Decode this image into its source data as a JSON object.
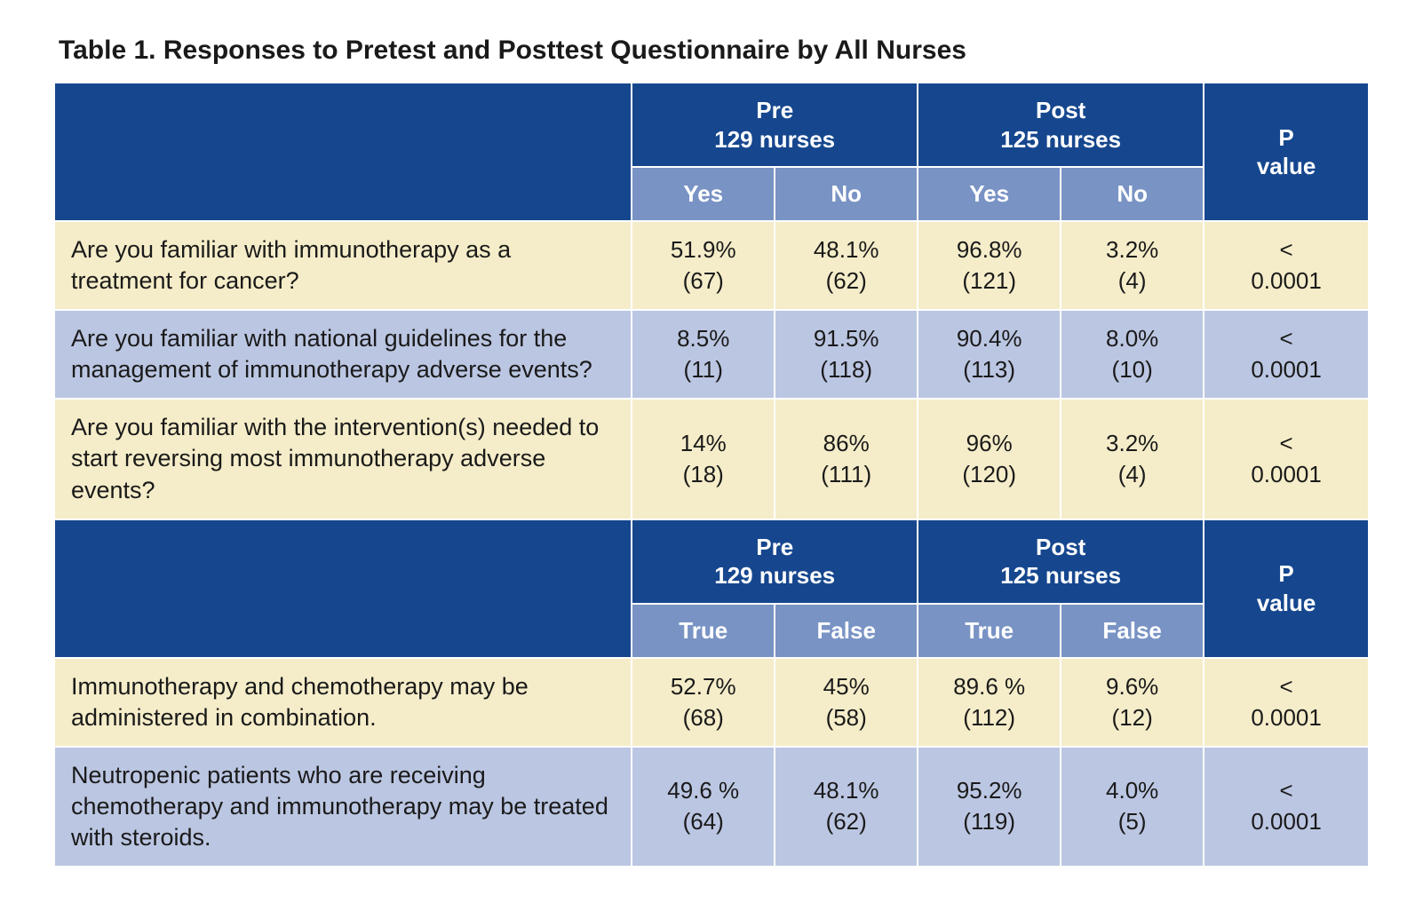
{
  "title": "Table 1. Responses to Pretest and Posttest Questionnaire by All Nurses",
  "colors": {
    "header_dark": "#16478e",
    "header_mid": "#7993c4",
    "row_yellow": "#f5edc9",
    "row_blue": "#bbc6e2",
    "text": "#1a1a1a",
    "header_text": "#ffffff",
    "border": "#ffffff"
  },
  "fonts": {
    "title_size_pt": 22,
    "header_size_pt": 19,
    "body_size_pt": 20
  },
  "section1": {
    "pre_label_line1": "Pre",
    "pre_label_line2": "129 nurses",
    "post_label_line1": "Post",
    "post_label_line2": "125 nurses",
    "p_label_line1": "P",
    "p_label_line2": "value",
    "sub_labels": {
      "pre_yes": "Yes",
      "pre_no": "No",
      "post_yes": "Yes",
      "post_no": "No"
    },
    "rows": [
      {
        "question": "Are you familiar with immunotherapy as a treatment for cancer?",
        "pre_yes_pct": "51.9%",
        "pre_yes_n": "(67)",
        "pre_no_pct": "48.1%",
        "pre_no_n": "(62)",
        "post_yes_pct": "96.8%",
        "post_yes_n": "(121)",
        "post_no_pct": "3.2%",
        "post_no_n": "(4)",
        "p_line1": "<",
        "p_line2": "0.0001",
        "stripe": "yellow"
      },
      {
        "question": "Are you familiar with national guidelines for the management of immunotherapy adverse events?",
        "pre_yes_pct": "8.5%",
        "pre_yes_n": "(11)",
        "pre_no_pct": "91.5%",
        "pre_no_n": "(118)",
        "post_yes_pct": "90.4%",
        "post_yes_n": "(113)",
        "post_no_pct": "8.0%",
        "post_no_n": "(10)",
        "p_line1": "<",
        "p_line2": "0.0001",
        "stripe": "blue"
      },
      {
        "question": "Are you familiar with the intervention(s) needed to start reversing most immunotherapy adverse events?",
        "pre_yes_pct": "14%",
        "pre_yes_n": "(18)",
        "pre_no_pct": "86%",
        "pre_no_n": "(111)",
        "post_yes_pct": "96%",
        "post_yes_n": "(120)",
        "post_no_pct": "3.2%",
        "post_no_n": "(4)",
        "p_line1": "<",
        "p_line2": "0.0001",
        "stripe": "yellow"
      }
    ]
  },
  "section2": {
    "pre_label_line1": "Pre",
    "pre_label_line2": "129 nurses",
    "post_label_line1": "Post",
    "post_label_line2": "125 nurses",
    "p_label_line1": "P",
    "p_label_line2": "value",
    "sub_labels": {
      "pre_yes": "True",
      "pre_no": "False",
      "post_yes": "True",
      "post_no": "False"
    },
    "rows": [
      {
        "question": "Immunotherapy and chemotherapy may be administered in combination.",
        "pre_yes_pct": "52.7%",
        "pre_yes_n": "(68)",
        "pre_no_pct": "45%",
        "pre_no_n": "(58)",
        "post_yes_pct": "89.6 %",
        "post_yes_n": "(112)",
        "post_no_pct": "9.6%",
        "post_no_n": "(12)",
        "p_line1": "<",
        "p_line2": "0.0001",
        "stripe": "yellow"
      },
      {
        "question": "Neutropenic patients who are receiving chemotherapy and immunotherapy may be treated with steroids.",
        "pre_yes_pct": "49.6 %",
        "pre_yes_n": "(64)",
        "pre_no_pct": "48.1%",
        "pre_no_n": "(62)",
        "post_yes_pct": "95.2%",
        "post_yes_n": "(119)",
        "post_no_pct": "4.0%",
        "post_no_n": "(5)",
        "p_line1": "<",
        "p_line2": "0.0001",
        "stripe": "blue"
      }
    ]
  }
}
